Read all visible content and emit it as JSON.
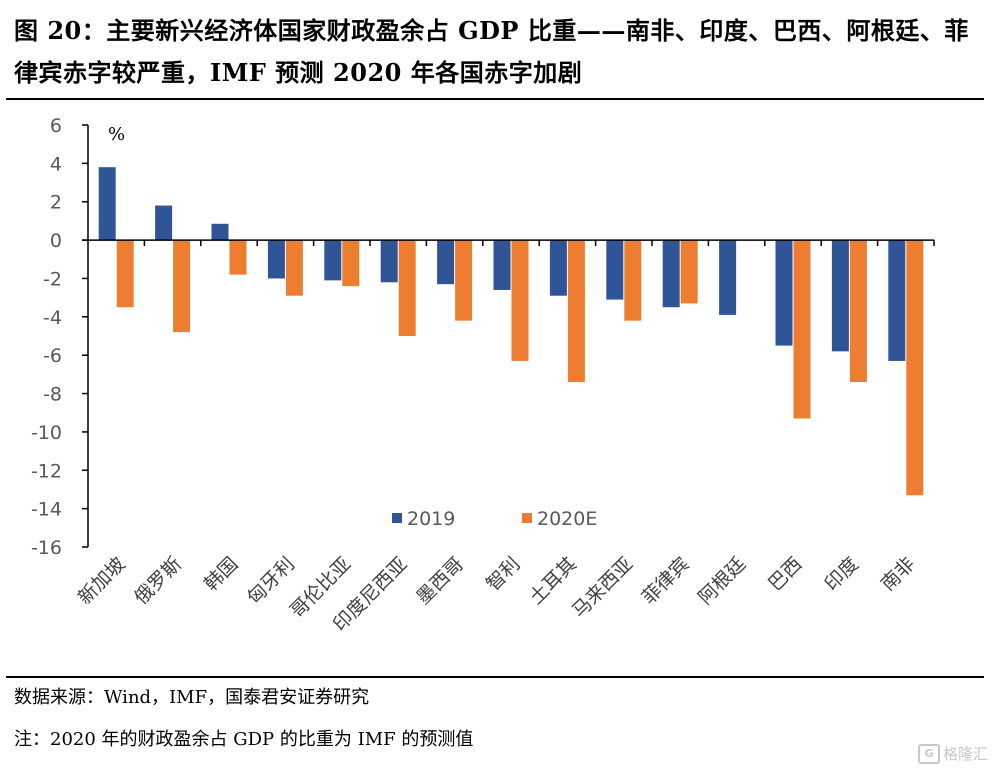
{
  "title": "图 20：主要新兴经济体国家财政盈余占 GDP 比重——南非、印度、巴西、阿根廷、菲律宾赤字较严重，IMF 预测 2020 年各国赤字加剧",
  "footer": {
    "source": "数据来源：Wind，IMF，国泰君安证券研究",
    "note": "注：2020 年的财政盈余占 GDP 的比重为 IMF 的预测值"
  },
  "watermark": {
    "icon": "G",
    "text": "格隆汇"
  },
  "colors": {
    "series_2019": "#2F5597",
    "series_2020E": "#ED7D31",
    "axis": "#000000",
    "tick_label": "#595959"
  },
  "chart_data": {
    "type": "bar",
    "title": "",
    "xlabel": "",
    "ylabel": "%",
    "ylim": [
      -16,
      6
    ],
    "yticks": [
      6,
      4,
      2,
      0,
      -2,
      -4,
      -6,
      -8,
      -10,
      -12,
      -14,
      -16
    ],
    "grid": false,
    "legend_position": "bottom-center",
    "categories": [
      "新加坡",
      "俄罗斯",
      "韩国",
      "匈牙利",
      "哥伦比亚",
      "印度尼西亚",
      "墨西哥",
      "智利",
      "土耳其",
      "马来西亚",
      "菲律宾",
      "阿根廷",
      "巴西",
      "印度",
      "南非"
    ],
    "series": [
      {
        "name": "2019",
        "color": "#2F5597",
        "values": [
          3.8,
          1.8,
          0.85,
          -2.0,
          -2.1,
          -2.2,
          -2.3,
          -2.6,
          -2.9,
          -3.1,
          -3.5,
          -3.9,
          -5.5,
          -5.8,
          -6.3
        ]
      },
      {
        "name": "2020E",
        "color": "#ED7D31",
        "values": [
          -3.5,
          -4.8,
          -1.8,
          -2.9,
          -2.4,
          -5.0,
          -4.2,
          -6.3,
          -7.4,
          -4.2,
          -3.3,
          null,
          -9.3,
          -7.4,
          -13.3
        ]
      }
    ]
  }
}
